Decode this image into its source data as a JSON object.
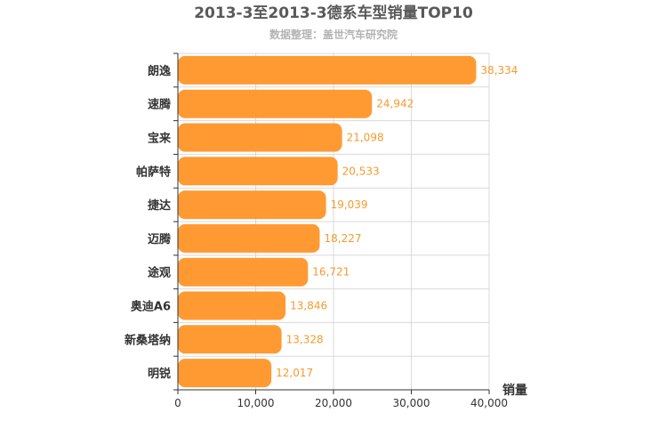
{
  "chart_data": {
    "type": "bar",
    "orientation": "horizontal",
    "title": "2013-3至2013-3德系车型销量TOP10",
    "subtitle": "数据整理：盖世汽车研究院",
    "xlabel": "销量",
    "ylabel": "",
    "xlim": [
      0,
      40000
    ],
    "x_ticks": [
      "0",
      "10,000",
      "20,000",
      "30,000",
      "40,000"
    ],
    "categories": [
      "朗逸",
      "速腾",
      "宝来",
      "帕萨特",
      "捷达",
      "迈腾",
      "途观",
      "奥迪A6",
      "新桑塔纳",
      "明锐"
    ],
    "values": [
      38334,
      24942,
      21098,
      20533,
      19039,
      18227,
      16721,
      13846,
      13328,
      12017
    ],
    "value_labels": [
      "38,334",
      "24,942",
      "21,098",
      "20,533",
      "19,039",
      "18,227",
      "16,721",
      "13,846",
      "13,328",
      "12,017"
    ],
    "grid": true,
    "colors": {
      "bar": "#ff9a33",
      "label": "#f59b2e",
      "grid": "#d9d9d9",
      "axis": "#333333"
    }
  }
}
